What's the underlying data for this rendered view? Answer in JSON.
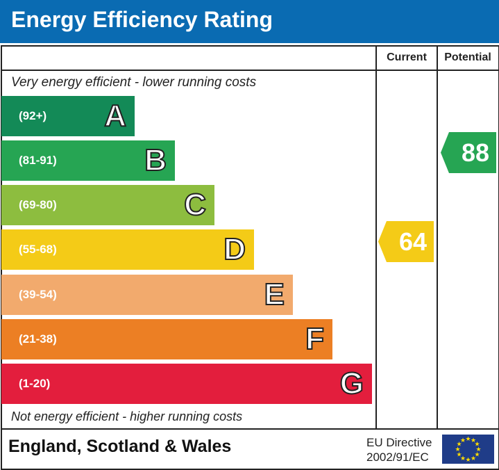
{
  "title": "Energy Efficiency Rating",
  "columns": {
    "current": "Current",
    "potential": "Potential"
  },
  "top_note": "Very energy efficient - lower running costs",
  "bottom_note": "Not energy efficient - higher running costs",
  "footer": {
    "region": "England, Scotland & Wales",
    "directive_line1": "EU Directive",
    "directive_line2": "2002/91/EC"
  },
  "chart_data": {
    "type": "bar",
    "bands": [
      {
        "letter": "A",
        "range": "(92+)",
        "color": "#138a57"
      },
      {
        "letter": "B",
        "range": "(81-91)",
        "color": "#26a553"
      },
      {
        "letter": "C",
        "range": "(69-80)",
        "color": "#8dbd3f"
      },
      {
        "letter": "D",
        "range": "(55-68)",
        "color": "#f4cb17"
      },
      {
        "letter": "E",
        "range": "(39-54)",
        "color": "#f2aa6d"
      },
      {
        "letter": "F",
        "range": "(21-38)",
        "color": "#ec7f24"
      },
      {
        "letter": "G",
        "range": "(1-20)",
        "color": "#e31e3d"
      }
    ],
    "current": {
      "value": "64",
      "band": "D",
      "color": "#f4cb17"
    },
    "potential": {
      "value": "88",
      "band": "B",
      "color": "#26a553"
    }
  }
}
